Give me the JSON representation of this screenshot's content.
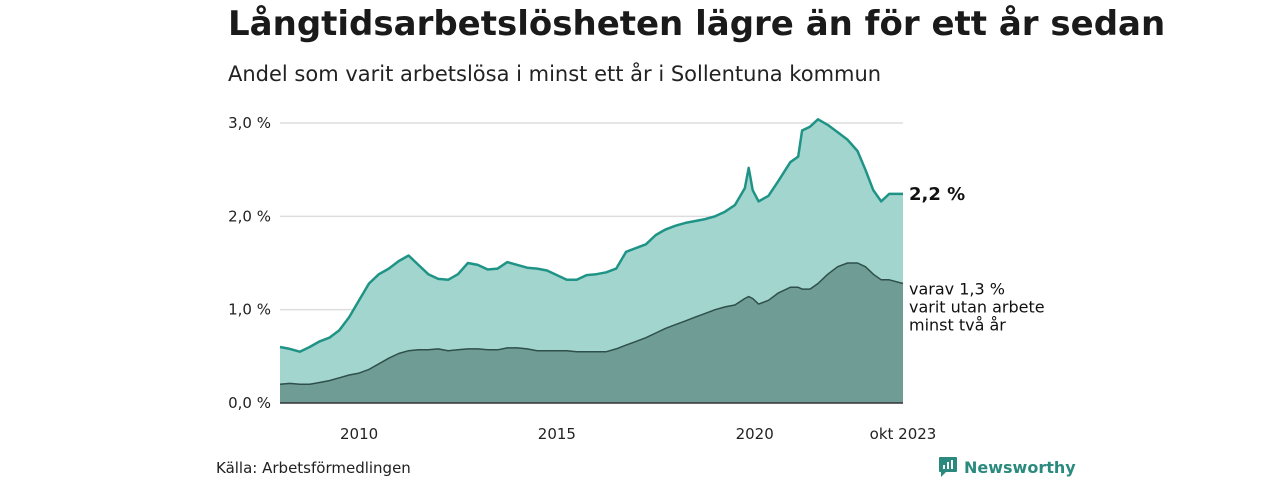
{
  "header": {
    "title": "Långtidsarbetslösheten lägre än för ett år sedan",
    "subtitle": "Andel som varit arbetslösa i minst ett år i Sollentuna kommun"
  },
  "footer": {
    "source": "Källa: Arbetsförmedlingen",
    "brand": "Newsworthy"
  },
  "colors": {
    "total_line": "#1f9486",
    "total_fill": "#a3d5cf",
    "long_line": "#2f4f4a",
    "long_fill": "#6f9d96",
    "grid": "#dddddd"
  },
  "chart_data": {
    "type": "area",
    "title": "Långtidsarbetslösheten lägre än för ett år sedan",
    "subtitle": "Andel som varit arbetslösa i minst ett år i Sollentuna kommun",
    "xlim": [
      2008.0,
      2023.75
    ],
    "ylim": [
      0,
      3.0
    ],
    "y_ticks": [
      {
        "value": 0,
        "label": "0,0 %"
      },
      {
        "value": 1,
        "label": "1,0 %"
      },
      {
        "value": 2,
        "label": "2,0 %"
      },
      {
        "value": 3,
        "label": "3,0 %"
      }
    ],
    "x_ticks": [
      {
        "value": 2010,
        "label": "2010"
      },
      {
        "value": 2015,
        "label": "2015"
      },
      {
        "value": 2020,
        "label": "2020"
      },
      {
        "value": 2023.75,
        "label": "okt 2023"
      }
    ],
    "grid": true,
    "series": [
      {
        "values": [
          [
            2008.0,
            0.6
          ],
          [
            2008.25,
            0.58
          ],
          [
            2008.5,
            0.55
          ],
          [
            2008.75,
            0.6
          ],
          [
            2009.0,
            0.66
          ],
          [
            2009.25,
            0.7
          ],
          [
            2009.5,
            0.78
          ],
          [
            2009.75,
            0.92
          ],
          [
            2010.0,
            1.1
          ],
          [
            2010.25,
            1.28
          ],
          [
            2010.5,
            1.38
          ],
          [
            2010.75,
            1.44
          ],
          [
            2011.0,
            1.52
          ],
          [
            2011.25,
            1.58
          ],
          [
            2011.5,
            1.48
          ],
          [
            2011.75,
            1.38
          ],
          [
            2012.0,
            1.33
          ],
          [
            2012.25,
            1.32
          ],
          [
            2012.5,
            1.38
          ],
          [
            2012.75,
            1.5
          ],
          [
            2013.0,
            1.48
          ],
          [
            2013.25,
            1.43
          ],
          [
            2013.5,
            1.44
          ],
          [
            2013.75,
            1.51
          ],
          [
            2014.0,
            1.48
          ],
          [
            2014.25,
            1.45
          ],
          [
            2014.5,
            1.44
          ],
          [
            2014.75,
            1.42
          ],
          [
            2015.0,
            1.37
          ],
          [
            2015.25,
            1.32
          ],
          [
            2015.5,
            1.32
          ],
          [
            2015.75,
            1.37
          ],
          [
            2016.0,
            1.38
          ],
          [
            2016.25,
            1.4
          ],
          [
            2016.5,
            1.44
          ],
          [
            2016.75,
            1.62
          ],
          [
            2017.0,
            1.66
          ],
          [
            2017.25,
            1.7
          ],
          [
            2017.5,
            1.8
          ],
          [
            2017.75,
            1.86
          ],
          [
            2018.0,
            1.9
          ],
          [
            2018.25,
            1.93
          ],
          [
            2018.5,
            1.95
          ],
          [
            2018.75,
            1.97
          ],
          [
            2019.0,
            2.0
          ],
          [
            2019.25,
            2.05
          ],
          [
            2019.5,
            2.12
          ],
          [
            2019.75,
            2.3
          ],
          [
            2019.85,
            2.52
          ],
          [
            2019.95,
            2.28
          ],
          [
            2020.1,
            2.16
          ],
          [
            2020.35,
            2.22
          ],
          [
            2020.6,
            2.38
          ],
          [
            2020.9,
            2.58
          ],
          [
            2021.1,
            2.64
          ],
          [
            2021.2,
            2.92
          ],
          [
            2021.4,
            2.96
          ],
          [
            2021.6,
            3.04
          ],
          [
            2021.85,
            2.98
          ],
          [
            2022.1,
            2.9
          ],
          [
            2022.35,
            2.82
          ],
          [
            2022.6,
            2.7
          ],
          [
            2022.8,
            2.5
          ],
          [
            2023.0,
            2.28
          ],
          [
            2023.2,
            2.16
          ],
          [
            2023.4,
            2.24
          ],
          [
            2023.75,
            2.24
          ]
        ]
      },
      {
        "values": [
          [
            2008.0,
            0.2
          ],
          [
            2008.25,
            0.21
          ],
          [
            2008.5,
            0.2
          ],
          [
            2008.75,
            0.2
          ],
          [
            2009.0,
            0.22
          ],
          [
            2009.25,
            0.24
          ],
          [
            2009.5,
            0.27
          ],
          [
            2009.75,
            0.3
          ],
          [
            2010.0,
            0.32
          ],
          [
            2010.25,
            0.36
          ],
          [
            2010.5,
            0.42
          ],
          [
            2010.75,
            0.48
          ],
          [
            2011.0,
            0.53
          ],
          [
            2011.25,
            0.56
          ],
          [
            2011.5,
            0.57
          ],
          [
            2011.75,
            0.57
          ],
          [
            2012.0,
            0.58
          ],
          [
            2012.25,
            0.56
          ],
          [
            2012.5,
            0.57
          ],
          [
            2012.75,
            0.58
          ],
          [
            2013.0,
            0.58
          ],
          [
            2013.25,
            0.57
          ],
          [
            2013.5,
            0.57
          ],
          [
            2013.75,
            0.59
          ],
          [
            2014.0,
            0.59
          ],
          [
            2014.25,
            0.58
          ],
          [
            2014.5,
            0.56
          ],
          [
            2014.75,
            0.56
          ],
          [
            2015.0,
            0.56
          ],
          [
            2015.25,
            0.56
          ],
          [
            2015.5,
            0.55
          ],
          [
            2015.75,
            0.55
          ],
          [
            2016.0,
            0.55
          ],
          [
            2016.25,
            0.55
          ],
          [
            2016.5,
            0.58
          ],
          [
            2016.75,
            0.62
          ],
          [
            2017.0,
            0.66
          ],
          [
            2017.25,
            0.7
          ],
          [
            2017.5,
            0.75
          ],
          [
            2017.75,
            0.8
          ],
          [
            2018.0,
            0.84
          ],
          [
            2018.25,
            0.88
          ],
          [
            2018.5,
            0.92
          ],
          [
            2018.75,
            0.96
          ],
          [
            2019.0,
            1.0
          ],
          [
            2019.25,
            1.03
          ],
          [
            2019.5,
            1.05
          ],
          [
            2019.75,
            1.12
          ],
          [
            2019.85,
            1.14
          ],
          [
            2019.95,
            1.12
          ],
          [
            2020.1,
            1.06
          ],
          [
            2020.35,
            1.1
          ],
          [
            2020.6,
            1.18
          ],
          [
            2020.9,
            1.24
          ],
          [
            2021.1,
            1.24
          ],
          [
            2021.2,
            1.22
          ],
          [
            2021.4,
            1.22
          ],
          [
            2021.6,
            1.28
          ],
          [
            2021.85,
            1.38
          ],
          [
            2022.1,
            1.46
          ],
          [
            2022.35,
            1.5
          ],
          [
            2022.6,
            1.5
          ],
          [
            2022.8,
            1.46
          ],
          [
            2023.0,
            1.38
          ],
          [
            2023.2,
            1.32
          ],
          [
            2023.4,
            1.32
          ],
          [
            2023.75,
            1.28
          ]
        ]
      }
    ],
    "annotations": {
      "total_end": "2,2 %",
      "long_end_lines": [
        "varav 1,3 %",
        "varit utan arbete",
        "minst två år"
      ]
    }
  }
}
